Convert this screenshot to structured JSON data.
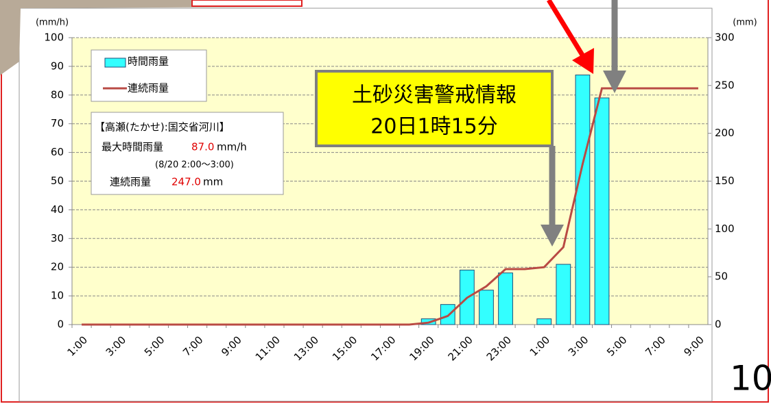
{
  "chart_data": {
    "type": "bar-line",
    "y_unit": "(mm/h)",
    "y2_unit": "(mm)",
    "categories": [
      "1:00",
      null,
      "3:00",
      null,
      "5:00",
      null,
      "7:00",
      null,
      "9:00",
      null,
      "11:00",
      null,
      "13:00",
      null,
      "15:00",
      null,
      "17:00",
      null,
      "19:00",
      null,
      "21:00",
      null,
      "23:00",
      null,
      "1:00",
      null,
      "3:00",
      null,
      "5:00",
      null,
      "7:00",
      null,
      "9:00"
    ],
    "series": [
      {
        "name": "時間雨量",
        "type": "bar",
        "color": "#33ffff",
        "values": [
          0,
          0,
          0,
          0,
          0,
          0,
          0,
          0,
          0,
          0,
          0,
          0,
          0,
          0,
          0,
          0,
          0,
          0,
          2,
          7,
          19,
          12,
          18,
          0,
          2,
          21,
          87,
          79,
          0,
          0,
          0,
          0,
          0
        ]
      },
      {
        "name": "連続雨量",
        "type": "line",
        "axis": "y2",
        "color": "#b94a44",
        "values": [
          0,
          0,
          0,
          0,
          0,
          0,
          0,
          0,
          0,
          0,
          0,
          0,
          0,
          0,
          0,
          0,
          0,
          0,
          2,
          9,
          28,
          40,
          58,
          58,
          60,
          81,
          168,
          247,
          247,
          247,
          247,
          247,
          247
        ]
      }
    ],
    "ylim": [
      0,
      100
    ],
    "yticks": [
      0,
      10,
      20,
      30,
      40,
      50,
      60,
      70,
      80,
      90,
      100
    ],
    "y2lim": [
      0,
      300
    ],
    "y2ticks": [
      0,
      50,
      100,
      150,
      200,
      250,
      300
    ],
    "grid": true,
    "info_box": {
      "station": "【高瀬(たかせ):国交省河川】",
      "max_label": "最大時間雨量",
      "max_value": "87.0",
      "max_unit": "mm/h",
      "max_period": "(8/20  2:00〜3:00)",
      "total_label": "連続雨量",
      "total_value": "247.0",
      "total_unit": "mm"
    },
    "callout": {
      "line1": "土砂災害警戒情報",
      "line2": "20日1時15分"
    },
    "page_number": "10"
  }
}
